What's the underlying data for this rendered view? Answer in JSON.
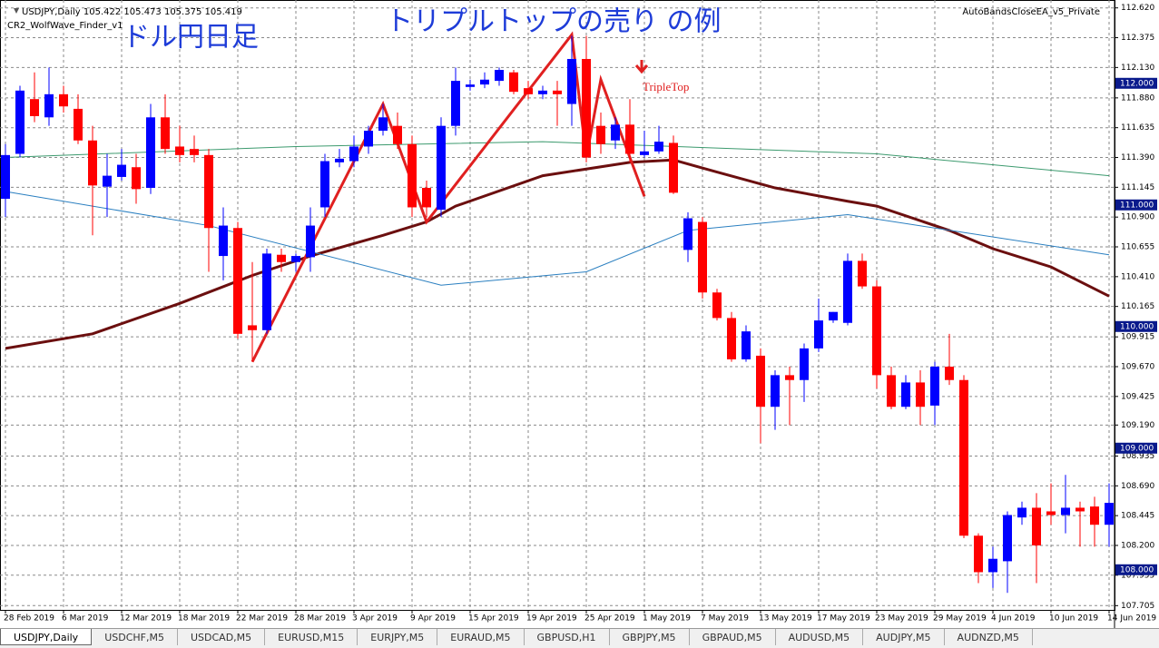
{
  "header": {
    "symbol_line": "USDJPY,Daily  105.422 105.473 105.375 105.419",
    "indicator": "CR2_WolfWave_Finder_v1",
    "expert": "AutoBandsCloseEA_v5_Private"
  },
  "chart_data": {
    "type": "candlestick",
    "title": "トリプルトップの売り の例",
    "subtitle": "ドル円日足",
    "annotation": "TripleTop",
    "categories": [
      "28 Feb 2019",
      null,
      null,
      null,
      "6 Mar 2019",
      null,
      null,
      null,
      "12 Mar 2019",
      null,
      null,
      null,
      "18 Mar 2019",
      null,
      null,
      null,
      "22 Mar 2019",
      null,
      null,
      null,
      "28 Mar 2019",
      null,
      null,
      null,
      "3 Apr 2019",
      null,
      null,
      null,
      "9 Apr 2019",
      null,
      null,
      null,
      "15 Apr 2019",
      null,
      null,
      null,
      "19 Apr 2019",
      null,
      null,
      null,
      "25 Apr 2019",
      null,
      null,
      null,
      "1 May 2019",
      null,
      null,
      null,
      "7 May 2019",
      null,
      null,
      null,
      "13 May 2019",
      null,
      null,
      null,
      "17 May 2019",
      null,
      null,
      null,
      "23 May 2019",
      null,
      null,
      null,
      "29 May 2019",
      null,
      null,
      null,
      "4 Jun 2019",
      null,
      null,
      null,
      "10 Jun 2019",
      null,
      null,
      null,
      "14 Jun 2019"
    ],
    "open": [
      111.05,
      111.42,
      111.87,
      111.72,
      111.91,
      111.79,
      111.53,
      111.15,
      111.23,
      111.31,
      111.14,
      111.72,
      111.48,
      111.46,
      111.41,
      110.58,
      110.81,
      110.01,
      109.97,
      110.59,
      110.53,
      110.57,
      110.98,
      111.35,
      111.36,
      111.48,
      111.61,
      111.65,
      111.5,
      111.14,
      110.96,
      111.65,
      111.97,
      111.99,
      112.02,
      112.09,
      111.96,
      111.91,
      111.94,
      111.83,
      112.2,
      111.65,
      111.53,
      111.66,
      111.41,
      111.44,
      111.51,
      110.63,
      110.86,
      110.28,
      110.07,
      109.73,
      109.76,
      109.34,
      109.6,
      109.56,
      109.82,
      110.05,
      110.03,
      110.54,
      110.33,
      109.6,
      109.34,
      109.54,
      109.35,
      109.67,
      109.56,
      108.28,
      107.98,
      108.07,
      108.43,
      108.51,
      108.48,
      108.45,
      108.51,
      108.52,
      108.37
    ],
    "high": [
      111.5,
      111.98,
      112.09,
      112.13,
      111.98,
      111.91,
      111.65,
      111.42,
      111.46,
      111.42,
      111.83,
      111.91,
      111.65,
      111.57,
      111.46,
      110.98,
      110.86,
      110.53,
      110.64,
      110.64,
      110.6,
      110.98,
      111.42,
      111.46,
      111.57,
      111.65,
      111.83,
      111.76,
      111.57,
      111.2,
      111.72,
      112.13,
      112.03,
      112.09,
      112.13,
      112.11,
      112.02,
      111.98,
      112.02,
      112.39,
      112.39,
      111.76,
      111.72,
      111.87,
      111.61,
      111.65,
      111.57,
      110.94,
      110.9,
      110.31,
      110.12,
      110.01,
      109.82,
      109.64,
      109.67,
      109.86,
      110.23,
      110.12,
      110.6,
      110.6,
      110.38,
      109.67,
      109.6,
      109.64,
      109.71,
      109.94,
      109.6,
      108.3,
      108.19,
      108.48,
      108.56,
      108.63,
      108.71,
      108.78,
      108.56,
      108.6,
      108.71
    ],
    "low": [
      110.9,
      111.39,
      111.68,
      111.65,
      111.76,
      111.5,
      110.75,
      110.9,
      111.2,
      111.01,
      111.09,
      111.42,
      111.35,
      111.35,
      110.45,
      110.38,
      109.9,
      109.71,
      109.94,
      110.45,
      110.45,
      110.45,
      110.9,
      111.31,
      111.31,
      111.42,
      111.57,
      111.46,
      110.9,
      110.9,
      110.9,
      111.57,
      111.94,
      111.96,
      111.98,
      111.91,
      111.87,
      111.87,
      111.65,
      111.65,
      111.35,
      111.42,
      111.46,
      111.35,
      111.39,
      111.42,
      111.09,
      110.53,
      110.23,
      110.05,
      109.71,
      109.71,
      109.04,
      109.15,
      109.19,
      109.38,
      109.79,
      110.03,
      110.01,
      110.31,
      109.49,
      109.32,
      109.32,
      109.19,
      109.19,
      109.52,
      108.26,
      107.89,
      107.85,
      107.81,
      108.37,
      107.89,
      108.37,
      108.3,
      108.19,
      108.19,
      108.19
    ],
    "close": [
      111.41,
      111.94,
      111.73,
      111.91,
      111.81,
      111.53,
      111.16,
      111.24,
      111.33,
      111.13,
      111.72,
      111.46,
      111.41,
      111.41,
      110.81,
      110.83,
      109.94,
      109.97,
      110.6,
      110.53,
      110.58,
      110.83,
      111.36,
      111.38,
      111.48,
      111.61,
      111.72,
      111.5,
      110.98,
      110.98,
      111.65,
      112.02,
      111.99,
      112.03,
      112.11,
      111.93,
      111.91,
      111.94,
      111.91,
      112.2,
      111.39,
      111.5,
      111.66,
      111.42,
      111.44,
      111.52,
      111.1,
      110.89,
      110.28,
      110.07,
      109.73,
      109.96,
      109.34,
      109.6,
      109.56,
      109.82,
      110.05,
      110.12,
      110.54,
      110.33,
      109.6,
      109.34,
      109.54,
      109.34,
      109.67,
      109.56,
      108.28,
      107.98,
      108.09,
      108.45,
      108.51,
      108.2,
      108.45,
      108.51,
      108.48,
      108.37,
      108.55
    ],
    "up_color": "#0000ff",
    "down_color": "#ff0000",
    "overlays": [
      {
        "color": "#6b0f0f",
        "width": 3,
        "index": [
          0,
          6,
          12,
          17,
          21,
          26,
          29,
          31,
          37,
          43,
          46,
          49,
          53,
          58,
          60,
          65,
          68,
          72,
          76
        ],
        "values": [
          109.82,
          109.94,
          110.19,
          110.42,
          110.58,
          110.75,
          110.86,
          110.99,
          111.24,
          111.35,
          111.37,
          111.27,
          111.14,
          111.03,
          110.99,
          110.79,
          110.64,
          110.49,
          110.25
        ]
      },
      {
        "color": "#3c9a6e",
        "width": 1,
        "index": [
          0,
          20,
          37,
          60,
          76
        ],
        "values": [
          111.39,
          111.48,
          111.52,
          111.42,
          111.24
        ]
      },
      {
        "color": "#2a7fc0",
        "width": 1,
        "index": [
          0,
          14,
          30,
          40,
          47,
          58,
          76
        ],
        "values": [
          111.11,
          110.83,
          110.34,
          110.45,
          110.79,
          110.92,
          110.59
        ]
      },
      {
        "color": "#e02020",
        "width": 3,
        "index": [
          17,
          26,
          29,
          39,
          40,
          41,
          43,
          44
        ],
        "values": [
          109.71,
          111.83,
          110.86,
          112.4,
          111.39,
          112.03,
          111.39,
          111.07
        ]
      }
    ],
    "ylim": [
      107.67,
      112.67
    ],
    "yticks": [
      {
        "value": 112.62,
        "label": "112.620"
      },
      {
        "value": 112.375,
        "label": "112.375"
      },
      {
        "value": 112.13,
        "label": "112.130"
      },
      {
        "value": 111.88,
        "label": "111.880"
      },
      {
        "value": 111.635,
        "label": "111.635"
      },
      {
        "value": 111.39,
        "label": "111.390"
      },
      {
        "value": 111.145,
        "label": "111.145"
      },
      {
        "value": 110.9,
        "label": "110.900"
      },
      {
        "value": 110.655,
        "label": "110.655"
      },
      {
        "value": 110.41,
        "label": "110.410"
      },
      {
        "value": 110.165,
        "label": "110.165"
      },
      {
        "value": 109.915,
        "label": "109.915"
      },
      {
        "value": 109.67,
        "label": "109.670"
      },
      {
        "value": 109.425,
        "label": "109.425"
      },
      {
        "value": 109.19,
        "label": "109.190"
      },
      {
        "value": 108.935,
        "label": "108.935"
      },
      {
        "value": 108.69,
        "label": "108.690"
      },
      {
        "value": 108.445,
        "label": "108.445"
      },
      {
        "value": 108.2,
        "label": "108.200"
      },
      {
        "value": 107.955,
        "label": "107.955"
      },
      {
        "value": 107.705,
        "label": "107.705"
      }
    ],
    "price_levels": [
      {
        "value": 112,
        "label": "112.000"
      },
      {
        "value": 111,
        "label": "111.000"
      },
      {
        "value": 110,
        "label": "110.000"
      },
      {
        "value": 109,
        "label": "109.000"
      },
      {
        "value": 108,
        "label": "108.000"
      }
    ],
    "grid": true
  },
  "tabs": [
    "USDJPY,Daily",
    "USDCHF,M5",
    "USDCAD,M5",
    "EURUSD,M15",
    "EURJPY,M5",
    "EURAUD,M5",
    "GBPUSD,H1",
    "GBPJPY,M5",
    "GBPAUD,M5",
    "AUDUSD,M5",
    "AUDJPY,M5",
    "AUDNZD,M5"
  ]
}
